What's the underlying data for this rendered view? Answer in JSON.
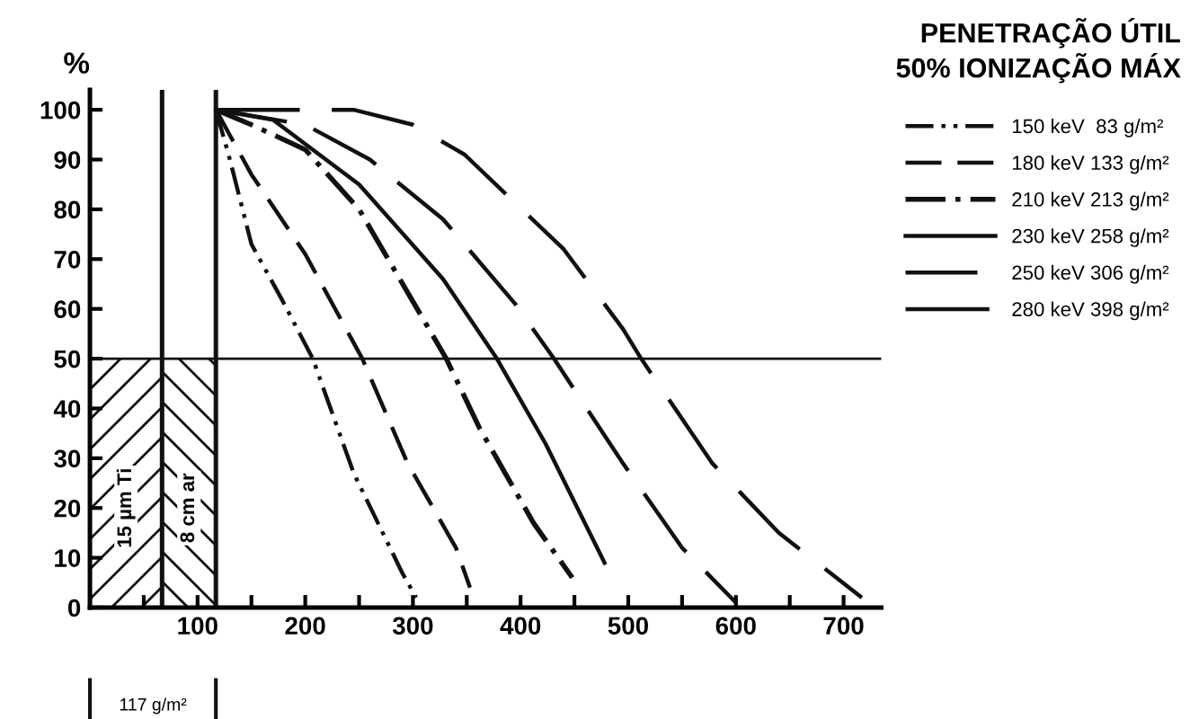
{
  "chart_data": {
    "type": "line",
    "title": "PENETRAÇÃO ÚTIL\n50% IONIZAÇÃO MÁX",
    "ylabel": "%",
    "xlim": [
      0,
      735
    ],
    "ylim": [
      0,
      104
    ],
    "xticks": [
      {
        "value": 0,
        "label": null
      },
      {
        "value": 50,
        "label": null
      },
      100,
      {
        "value": 150,
        "label": null
      },
      200,
      {
        "value": 250,
        "label": null
      },
      300,
      {
        "value": 350,
        "label": null
      },
      400,
      {
        "value": 450,
        "label": null
      },
      500,
      {
        "value": 550,
        "label": null
      },
      600,
      {
        "value": 650,
        "label": null
      },
      700
    ],
    "yticks": [
      0,
      10,
      20,
      30,
      40,
      50,
      60,
      70,
      80,
      90,
      100
    ],
    "grid": false,
    "legend": "top right",
    "marker": "none",
    "series": [
      {
        "name": "150 keV  83 g/m²",
        "color": "#111111",
        "line_style": "dotted",
        "x": [
          117,
          130,
          150,
          178,
          207,
          245,
          290,
          303
        ],
        "values": [
          100,
          90,
          73,
          62,
          50,
          27,
          7,
          2
        ]
      },
      {
        "name": "180 keV 133 g/m²",
        "color": "#111111",
        "line_style": "dashed",
        "x": [
          117,
          150,
          200,
          253,
          295,
          340,
          353
        ],
        "values": [
          100,
          87,
          71,
          50,
          29,
          12,
          4
        ]
      },
      {
        "name": "210 keV 213 g/m²",
        "color": "#111111",
        "line_style": "dotted",
        "x": [
          117,
          150,
          200,
          250,
          331,
          362,
          412,
          448
        ],
        "values": [
          100,
          97,
          92,
          80,
          50,
          36,
          17,
          6
        ]
      },
      {
        "name": "230 keV 258 g/m²",
        "color": "#111111",
        "line_style": "solid",
        "x": [
          117,
          170,
          250,
          328,
          378,
          423,
          478
        ],
        "values": [
          100,
          98,
          85,
          66,
          50,
          33,
          9
        ]
      },
      {
        "name": "250 keV 306 g/m²",
        "color": "#111111",
        "line_style": "dashed",
        "x": [
          117,
          200,
          260,
          328,
          395,
          431,
          495,
          550,
          600
        ],
        "values": [
          100,
          97,
          90,
          78,
          61,
          50,
          29,
          12,
          1
        ]
      },
      {
        "name": "280 keV 398 g/m²",
        "color": "#111111",
        "line_style": "dashed",
        "x": [
          117,
          245,
          300,
          348,
          440,
          495,
          512,
          578,
          640,
          717
        ],
        "values": [
          100,
          100,
          97,
          91,
          72,
          56,
          50,
          29,
          15,
          2
        ]
      }
    ],
    "ref_lines": [
      {
        "axis": "y",
        "value": 50,
        "color": "#111111"
      },
      {
        "axis": "x",
        "value": 67,
        "color": "#111111"
      },
      {
        "axis": "x",
        "value": 117,
        "color": "#111111"
      }
    ],
    "bands": [
      {
        "axis": "x",
        "from": 0,
        "to": 67,
        "label": "15 µm Ti",
        "color": "#111111"
      },
      {
        "axis": "x",
        "from": 67,
        "to": 117,
        "label": "8 cm ar",
        "color": "#111111"
      }
    ],
    "annotations": [
      "117 g/m²"
    ]
  }
}
